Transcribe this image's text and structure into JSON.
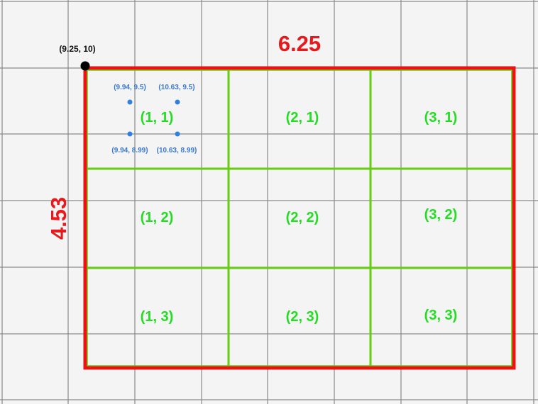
{
  "origin": {
    "label": "(9.25, 10)"
  },
  "dimensions": {
    "width": "6.25",
    "height": "4.53"
  },
  "cells": [
    {
      "label": "(1, 1)"
    },
    {
      "label": "(2, 1)"
    },
    {
      "label": "(3, 1)"
    },
    {
      "label": "(1, 2)"
    },
    {
      "label": "(2, 2)"
    },
    {
      "label": "(3, 2)"
    },
    {
      "label": "(1, 3)"
    },
    {
      "label": "(2, 3)"
    },
    {
      "label": "(3, 3)"
    }
  ],
  "sample_points": [
    {
      "label": "(9.94, 9.5)"
    },
    {
      "label": "(10.63, 9.5)"
    },
    {
      "label": "(9.94, 8.99)"
    },
    {
      "label": "(10.63, 8.99)"
    }
  ],
  "colors": {
    "background": "#f4f4f4",
    "grid": "#8a8a8a",
    "bbox": "#ee1111",
    "subgrid": "#66cc11",
    "cell_text": "#22dd22",
    "point": "#2f7fe0",
    "point_text": "#3a78d0",
    "origin": "#000000"
  }
}
